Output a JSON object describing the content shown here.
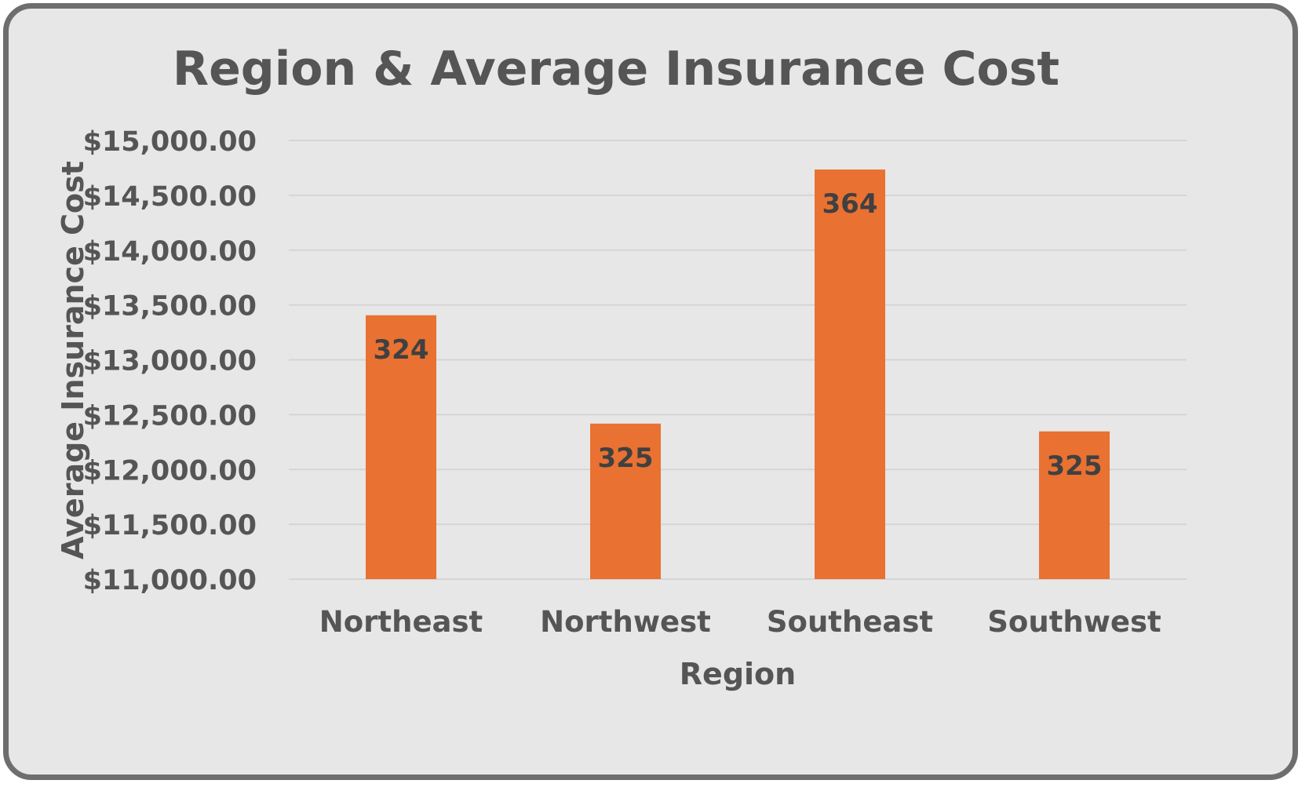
{
  "chart_data": {
    "type": "bar",
    "title": "Region & Average Insurance Cost",
    "xlabel": "Region",
    "ylabel": "Average Insurance Cost",
    "categories": [
      "Northeast",
      "Northwest",
      "Southeast",
      "Southwest"
    ],
    "values": [
      13406,
      12418,
      14735,
      12347
    ],
    "data_labels": [
      "324",
      "325",
      "364",
      "325"
    ],
    "ylim": [
      11000,
      15000
    ],
    "yticks": [
      11000,
      11500,
      12000,
      12500,
      13000,
      13500,
      14000,
      14500,
      15000
    ],
    "ytick_labels": [
      "$11,000.00",
      "$11,500.00",
      "$12,000.00",
      "$12,500.00",
      "$13,000.00",
      "$13,500.00",
      "$14,000.00",
      "$14,500.00",
      "$15,000.00"
    ],
    "grid": true,
    "legend": "none",
    "colors": {
      "bar": "#E97132",
      "background": "#E7E7E7",
      "border": "#6E6E6E",
      "text": "#555555",
      "gridline": "#D5D5D5"
    }
  }
}
